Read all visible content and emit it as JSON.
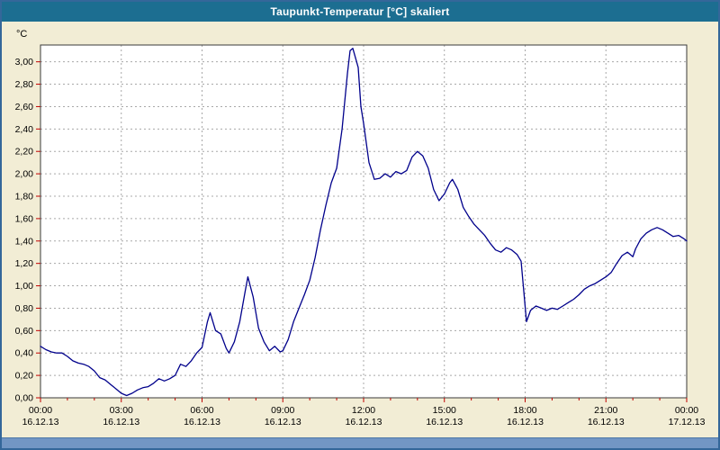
{
  "window": {
    "title_bar": {
      "title": "Taupunkt-Temperatur [°C] skaliert"
    }
  },
  "chart_data": {
    "type": "line",
    "title": "Taupunkt-Temperatur [°C] skaliert",
    "ylabel": "°C",
    "xlabel": "",
    "ylim": [
      0,
      3.15
    ],
    "yticks": {
      "min": 0.0,
      "max": 3.0,
      "step": 0.2,
      "decimal_separator": ","
    },
    "x_hours_range": [
      0,
      24
    ],
    "grid": {
      "style": "dashed",
      "on": true
    },
    "legend_position": "none",
    "xticks": [
      {
        "hour": 0,
        "time": "00:00",
        "date": "16.12.13"
      },
      {
        "hour": 3,
        "time": "03:00",
        "date": "16.12.13"
      },
      {
        "hour": 6,
        "time": "06:00",
        "date": "16.12.13"
      },
      {
        "hour": 9,
        "time": "09:00",
        "date": "16.12.13"
      },
      {
        "hour": 12,
        "time": "12:00",
        "date": "16.12.13"
      },
      {
        "hour": 15,
        "time": "15:00",
        "date": "16.12.13"
      },
      {
        "hour": 18,
        "time": "18:00",
        "date": "16.12.13"
      },
      {
        "hour": 21,
        "time": "21:00",
        "date": "16.12.13"
      },
      {
        "hour": 24,
        "time": "00:00",
        "date": "17.12.13"
      }
    ],
    "series": [
      {
        "name": "Taupunkt-Temperatur",
        "color": "#00008B",
        "points": [
          [
            0.0,
            0.46
          ],
          [
            0.2,
            0.43
          ],
          [
            0.4,
            0.41
          ],
          [
            0.6,
            0.4
          ],
          [
            0.8,
            0.4
          ],
          [
            1.0,
            0.37
          ],
          [
            1.2,
            0.33
          ],
          [
            1.4,
            0.31
          ],
          [
            1.6,
            0.3
          ],
          [
            1.8,
            0.28
          ],
          [
            2.0,
            0.24
          ],
          [
            2.2,
            0.18
          ],
          [
            2.4,
            0.16
          ],
          [
            2.6,
            0.12
          ],
          [
            2.8,
            0.08
          ],
          [
            3.0,
            0.04
          ],
          [
            3.2,
            0.02
          ],
          [
            3.4,
            0.04
          ],
          [
            3.6,
            0.07
          ],
          [
            3.8,
            0.09
          ],
          [
            4.0,
            0.1
          ],
          [
            4.2,
            0.13
          ],
          [
            4.4,
            0.17
          ],
          [
            4.6,
            0.15
          ],
          [
            4.8,
            0.17
          ],
          [
            5.0,
            0.2
          ],
          [
            5.2,
            0.3
          ],
          [
            5.4,
            0.28
          ],
          [
            5.6,
            0.33
          ],
          [
            5.8,
            0.4
          ],
          [
            6.0,
            0.45
          ],
          [
            6.2,
            0.68
          ],
          [
            6.3,
            0.76
          ],
          [
            6.5,
            0.6
          ],
          [
            6.7,
            0.57
          ],
          [
            6.9,
            0.44
          ],
          [
            7.0,
            0.4
          ],
          [
            7.2,
            0.5
          ],
          [
            7.4,
            0.68
          ],
          [
            7.6,
            0.95
          ],
          [
            7.7,
            1.08
          ],
          [
            7.9,
            0.9
          ],
          [
            8.1,
            0.62
          ],
          [
            8.3,
            0.5
          ],
          [
            8.5,
            0.42
          ],
          [
            8.7,
            0.46
          ],
          [
            8.9,
            0.41
          ],
          [
            9.0,
            0.42
          ],
          [
            9.2,
            0.52
          ],
          [
            9.4,
            0.68
          ],
          [
            9.6,
            0.8
          ],
          [
            9.8,
            0.92
          ],
          [
            10.0,
            1.05
          ],
          [
            10.2,
            1.25
          ],
          [
            10.4,
            1.5
          ],
          [
            10.6,
            1.72
          ],
          [
            10.8,
            1.92
          ],
          [
            11.0,
            2.05
          ],
          [
            11.2,
            2.4
          ],
          [
            11.4,
            2.9
          ],
          [
            11.5,
            3.1
          ],
          [
            11.6,
            3.12
          ],
          [
            11.8,
            2.95
          ],
          [
            11.9,
            2.6
          ],
          [
            12.0,
            2.45
          ],
          [
            12.2,
            2.1
          ],
          [
            12.4,
            1.95
          ],
          [
            12.6,
            1.96
          ],
          [
            12.8,
            2.0
          ],
          [
            13.0,
            1.97
          ],
          [
            13.2,
            2.02
          ],
          [
            13.4,
            2.0
          ],
          [
            13.6,
            2.03
          ],
          [
            13.8,
            2.15
          ],
          [
            14.0,
            2.2
          ],
          [
            14.2,
            2.16
          ],
          [
            14.4,
            2.05
          ],
          [
            14.6,
            1.86
          ],
          [
            14.8,
            1.76
          ],
          [
            15.0,
            1.82
          ],
          [
            15.2,
            1.92
          ],
          [
            15.3,
            1.95
          ],
          [
            15.5,
            1.86
          ],
          [
            15.7,
            1.7
          ],
          [
            15.9,
            1.62
          ],
          [
            16.1,
            1.55
          ],
          [
            16.3,
            1.5
          ],
          [
            16.5,
            1.45
          ],
          [
            16.7,
            1.38
          ],
          [
            16.9,
            1.32
          ],
          [
            17.1,
            1.3
          ],
          [
            17.3,
            1.34
          ],
          [
            17.5,
            1.32
          ],
          [
            17.7,
            1.28
          ],
          [
            17.85,
            1.22
          ],
          [
            17.95,
            0.95
          ],
          [
            18.05,
            0.68
          ],
          [
            18.2,
            0.78
          ],
          [
            18.4,
            0.82
          ],
          [
            18.6,
            0.8
          ],
          [
            18.8,
            0.78
          ],
          [
            19.0,
            0.8
          ],
          [
            19.2,
            0.79
          ],
          [
            19.4,
            0.82
          ],
          [
            19.6,
            0.85
          ],
          [
            19.8,
            0.88
          ],
          [
            20.0,
            0.92
          ],
          [
            20.2,
            0.97
          ],
          [
            20.4,
            1.0
          ],
          [
            20.6,
            1.02
          ],
          [
            20.8,
            1.05
          ],
          [
            21.0,
            1.08
          ],
          [
            21.2,
            1.12
          ],
          [
            21.4,
            1.2
          ],
          [
            21.6,
            1.27
          ],
          [
            21.8,
            1.3
          ],
          [
            22.0,
            1.26
          ],
          [
            22.1,
            1.33
          ],
          [
            22.3,
            1.42
          ],
          [
            22.5,
            1.47
          ],
          [
            22.7,
            1.5
          ],
          [
            22.9,
            1.52
          ],
          [
            23.1,
            1.5
          ],
          [
            23.3,
            1.47
          ],
          [
            23.5,
            1.44
          ],
          [
            23.7,
            1.45
          ],
          [
            23.9,
            1.42
          ],
          [
            24.0,
            1.4
          ]
        ]
      }
    ],
    "colors": {
      "title_bar_bg": "#1C6E91",
      "title_text": "#FFFFFF",
      "chart_bg": "#F2EDD5",
      "plot_bg": "#FFFFFF",
      "plot_border": "#3a3a3a",
      "grid": "#A8A8A8",
      "tick": "#C00000",
      "line": "#00008B",
      "frame": "#34679A",
      "bottom_strip": "#7296C4"
    }
  }
}
